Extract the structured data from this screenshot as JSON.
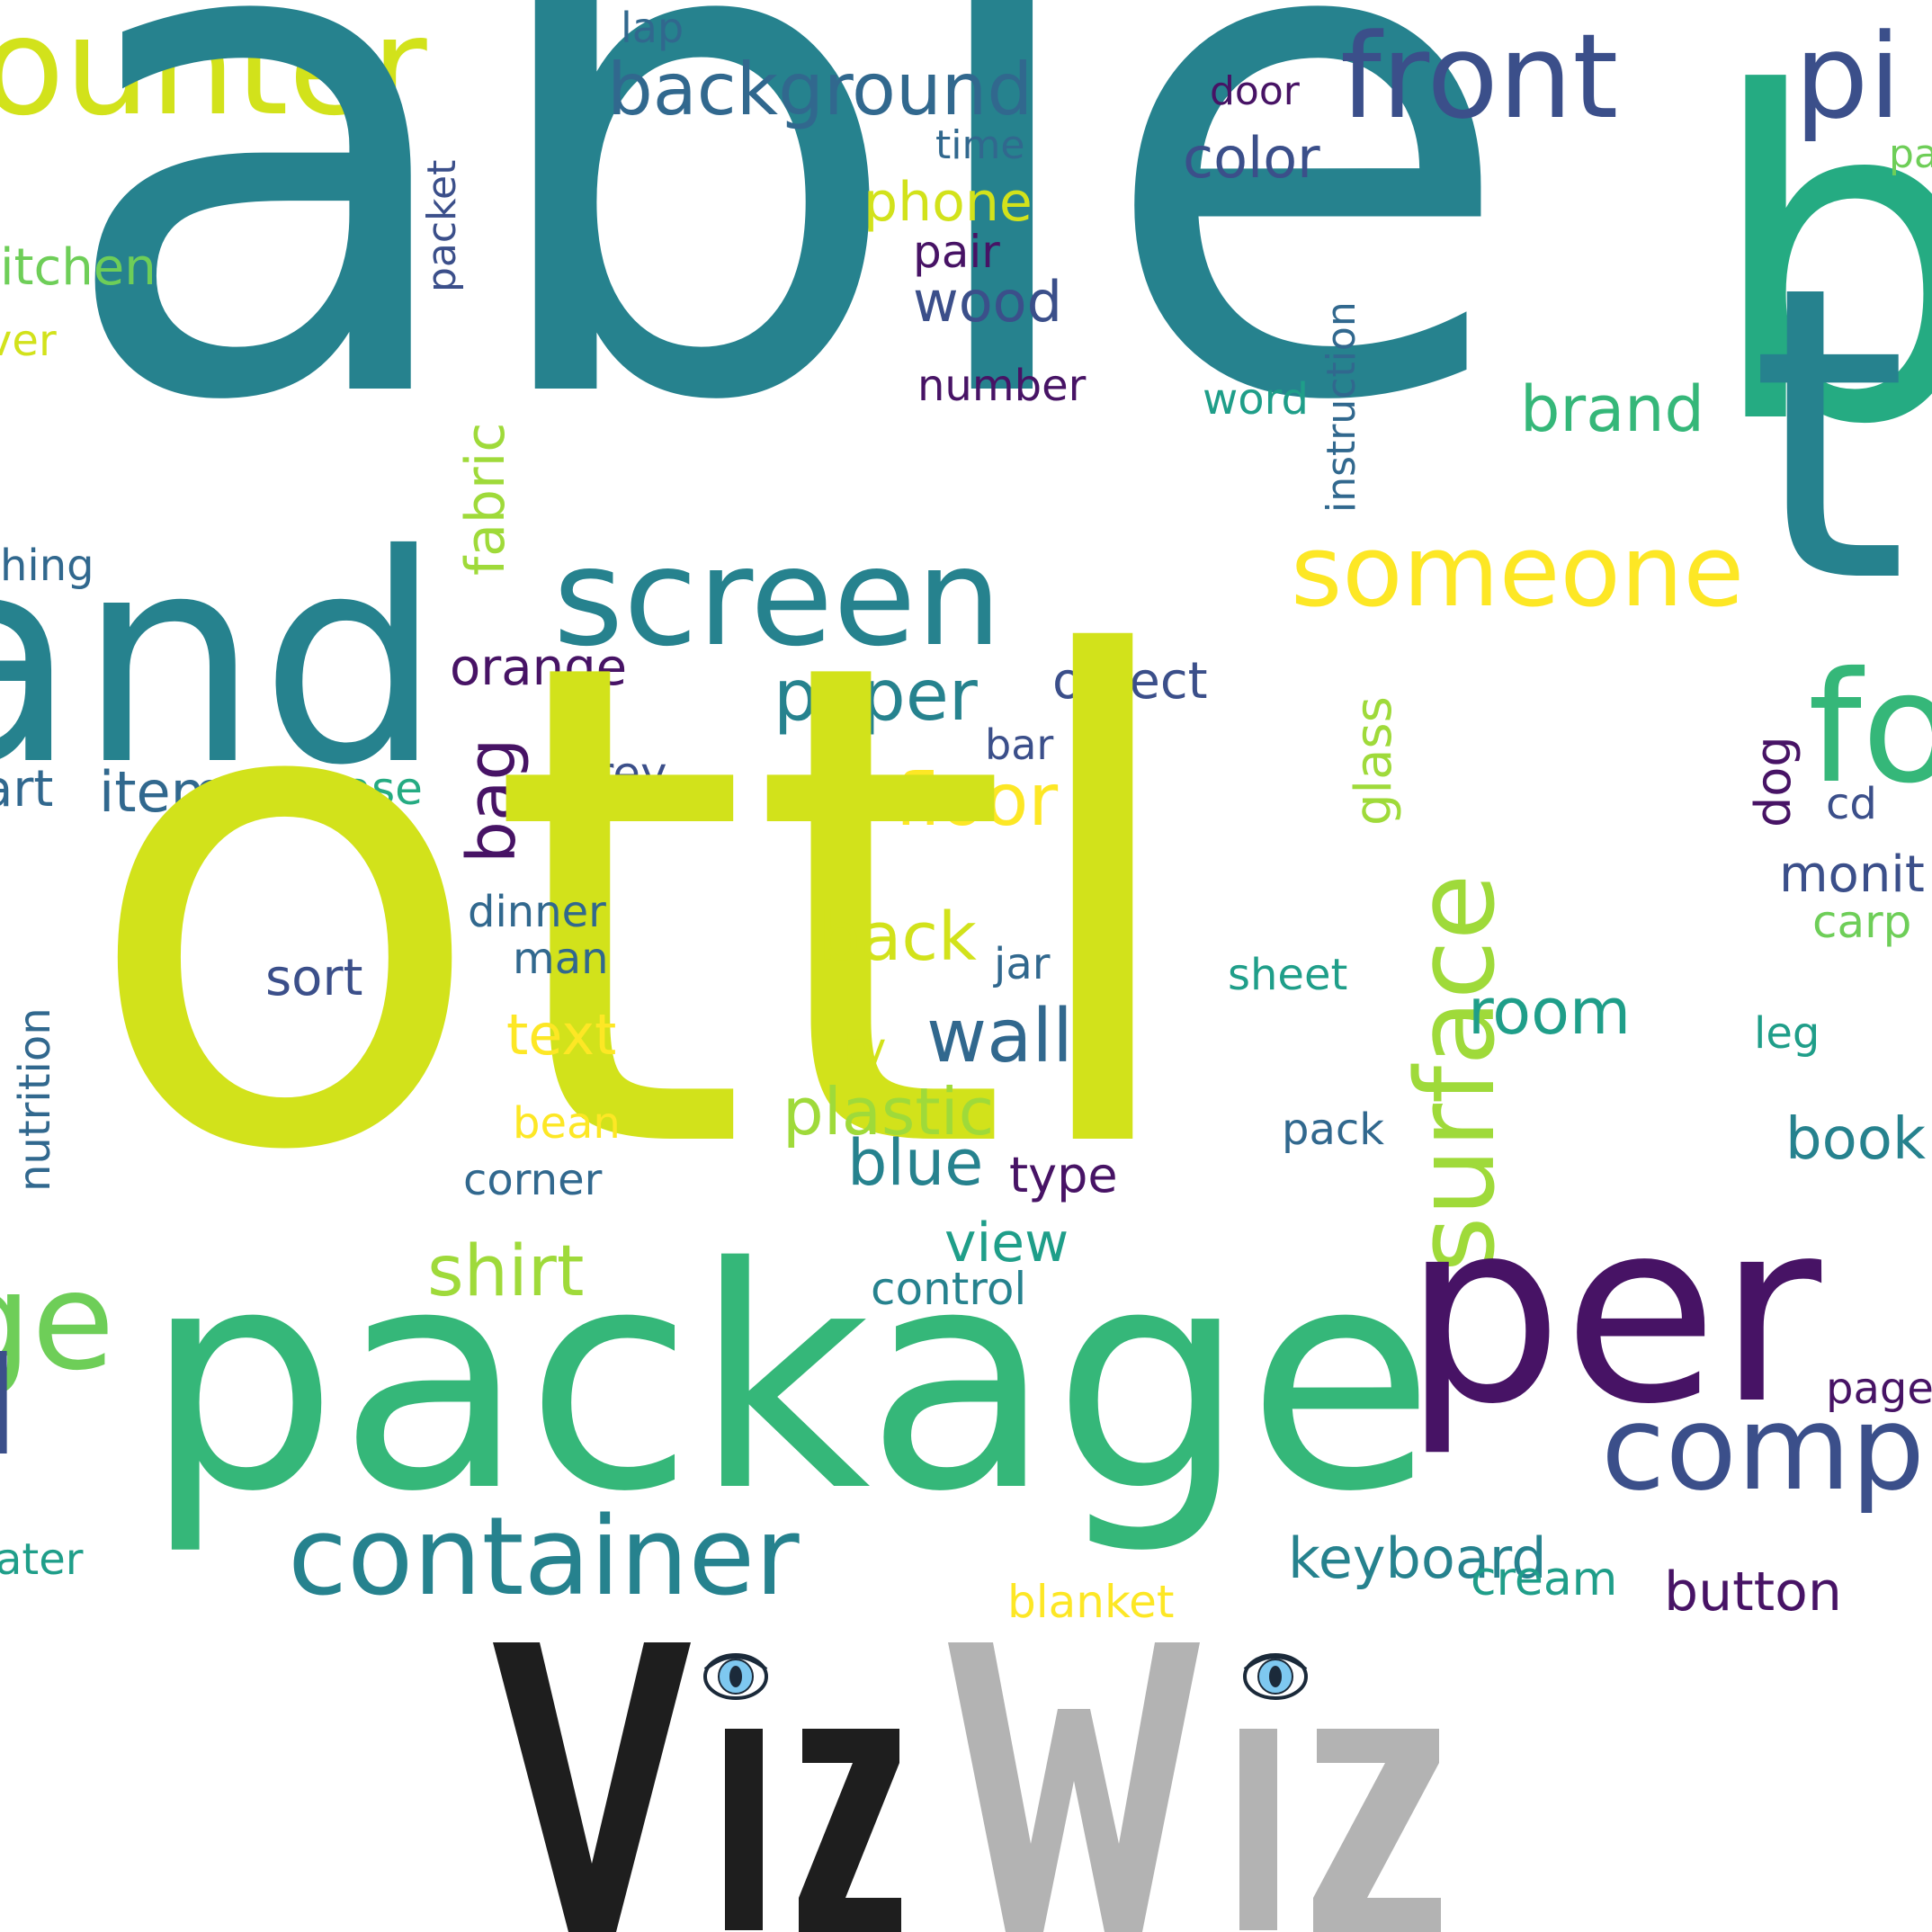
{
  "word_cloud": {
    "colors": {
      "dark_purple": "#471365",
      "indigo": "#3b4f8a",
      "blue": "#31688e",
      "teal": "#26828e",
      "teal_green": "#1f9e89",
      "green": "#35b779",
      "light_green": "#6ece58",
      "lime": "#9fda3a",
      "yellow_green": "#d2e21b",
      "yellow": "#fde725"
    },
    "words": [
      {
        "text": "ounter",
        "color": "#d2e21b"
      },
      {
        "text": "able",
        "color": "#26828e"
      },
      {
        "text": "lap",
        "color": "#31688e"
      },
      {
        "text": "background",
        "color": "#31688e"
      },
      {
        "text": "front",
        "color": "#3b4f8a"
      },
      {
        "text": "pi",
        "color": "#3b4f8a"
      },
      {
        "text": "door",
        "color": "#471365"
      },
      {
        "text": "b",
        "color": "#25ab82"
      },
      {
        "text": "time",
        "color": "#31688e"
      },
      {
        "text": "color",
        "color": "#3b4f8a"
      },
      {
        "text": "pa",
        "color": "#6ece58"
      },
      {
        "text": "packet",
        "color": "#3b4f8a"
      },
      {
        "text": "phone",
        "color": "#d2e21b"
      },
      {
        "text": "itchen",
        "color": "#6ece58"
      },
      {
        "text": "pair",
        "color": "#471365"
      },
      {
        "text": "wood",
        "color": "#3b4f8a"
      },
      {
        "text": "instruction",
        "color": "#31688e"
      },
      {
        "text": "ver",
        "color": "#d2e21b"
      },
      {
        "text": "fabric",
        "color": "#9fda3a"
      },
      {
        "text": "number",
        "color": "#471365"
      },
      {
        "text": "word",
        "color": "#1f9e89"
      },
      {
        "text": "brand",
        "color": "#35b779"
      },
      {
        "text": "t",
        "color": "#26828e"
      },
      {
        "text": "someone",
        "color": "#fde725"
      },
      {
        "text": "hing",
        "color": "#31688e"
      },
      {
        "text": "screen",
        "color": "#26828e"
      },
      {
        "text": "and",
        "color": "#26828e"
      },
      {
        "text": "orange",
        "color": "#471365"
      },
      {
        "text": "paper",
        "color": "#26828e"
      },
      {
        "text": "object",
        "color": "#3b4f8a"
      },
      {
        "text": "surface",
        "color": "#9fda3a"
      },
      {
        "text": "glass",
        "color": "#9fda3a"
      },
      {
        "text": "fo",
        "color": "#35b779"
      },
      {
        "text": "bar",
        "color": "#3b4f8a"
      },
      {
        "text": "bag",
        "color": "#471365"
      },
      {
        "text": "dog",
        "color": "#471365"
      },
      {
        "text": "art",
        "color": "#31688e"
      },
      {
        "text": "item",
        "color": "#31688e"
      },
      {
        "text": "case",
        "color": "#25ab82"
      },
      {
        "text": "grey",
        "color": "#3b4f8a"
      },
      {
        "text": "floor",
        "color": "#fde725"
      },
      {
        "text": "cd",
        "color": "#3b4f8a"
      },
      {
        "text": "ottl",
        "color": "#d2e21b"
      },
      {
        "text": "monit",
        "color": "#3b4f8a"
      },
      {
        "text": "dinner",
        "color": "#31688e"
      },
      {
        "text": "carp",
        "color": "#6ece58"
      },
      {
        "text": "back",
        "color": "#d2e21b"
      },
      {
        "text": "nutrition",
        "color": "#31688e"
      },
      {
        "text": "man",
        "color": "#31688e"
      },
      {
        "text": "sort",
        "color": "#3b4f8a"
      },
      {
        "text": "jar",
        "color": "#31688e"
      },
      {
        "text": "sheet",
        "color": "#1f9e89"
      },
      {
        "text": "room",
        "color": "#1f9e89"
      },
      {
        "text": "wall",
        "color": "#31688e"
      },
      {
        "text": "leg",
        "color": "#1f9e89"
      },
      {
        "text": "text",
        "color": "#fde725"
      },
      {
        "text": "tv",
        "color": "#d2e21b"
      },
      {
        "text": "plastic",
        "color": "#9fda3a"
      },
      {
        "text": "book",
        "color": "#26828e"
      },
      {
        "text": "bean",
        "color": "#fde725"
      },
      {
        "text": "pack",
        "color": "#31688e"
      },
      {
        "text": "blue",
        "color": "#26828e"
      },
      {
        "text": "corner",
        "color": "#31688e"
      },
      {
        "text": "type",
        "color": "#471365"
      },
      {
        "text": "view",
        "color": "#1f9e89"
      },
      {
        "text": "shirt",
        "color": "#9fda3a"
      },
      {
        "text": "control",
        "color": "#26828e"
      },
      {
        "text": "ge",
        "color": "#6ece58"
      },
      {
        "text": "package",
        "color": "#35b779"
      },
      {
        "text": "per",
        "color": "#471365"
      },
      {
        "text": "page",
        "color": "#471365"
      },
      {
        "text": "l",
        "color": "#3b4f8a"
      },
      {
        "text": "comp",
        "color": "#3b4f8a"
      },
      {
        "text": "container",
        "color": "#26828e"
      },
      {
        "text": "keyboard",
        "color": "#26828e"
      },
      {
        "text": "ater",
        "color": "#1f9e89"
      },
      {
        "text": "cream",
        "color": "#1f9e89"
      },
      {
        "text": "button",
        "color": "#471365"
      },
      {
        "text": "blanket",
        "color": "#fde725"
      }
    ]
  },
  "logo": {
    "text": "VizWiz",
    "part1": "Viz",
    "part2": "Wiz",
    "color_part1": "#1e1e1e",
    "color_part2": "#b3b3b3",
    "eye_iris_color": "#7ec8f0",
    "eye_pupil_color": "#1b2a3a"
  }
}
